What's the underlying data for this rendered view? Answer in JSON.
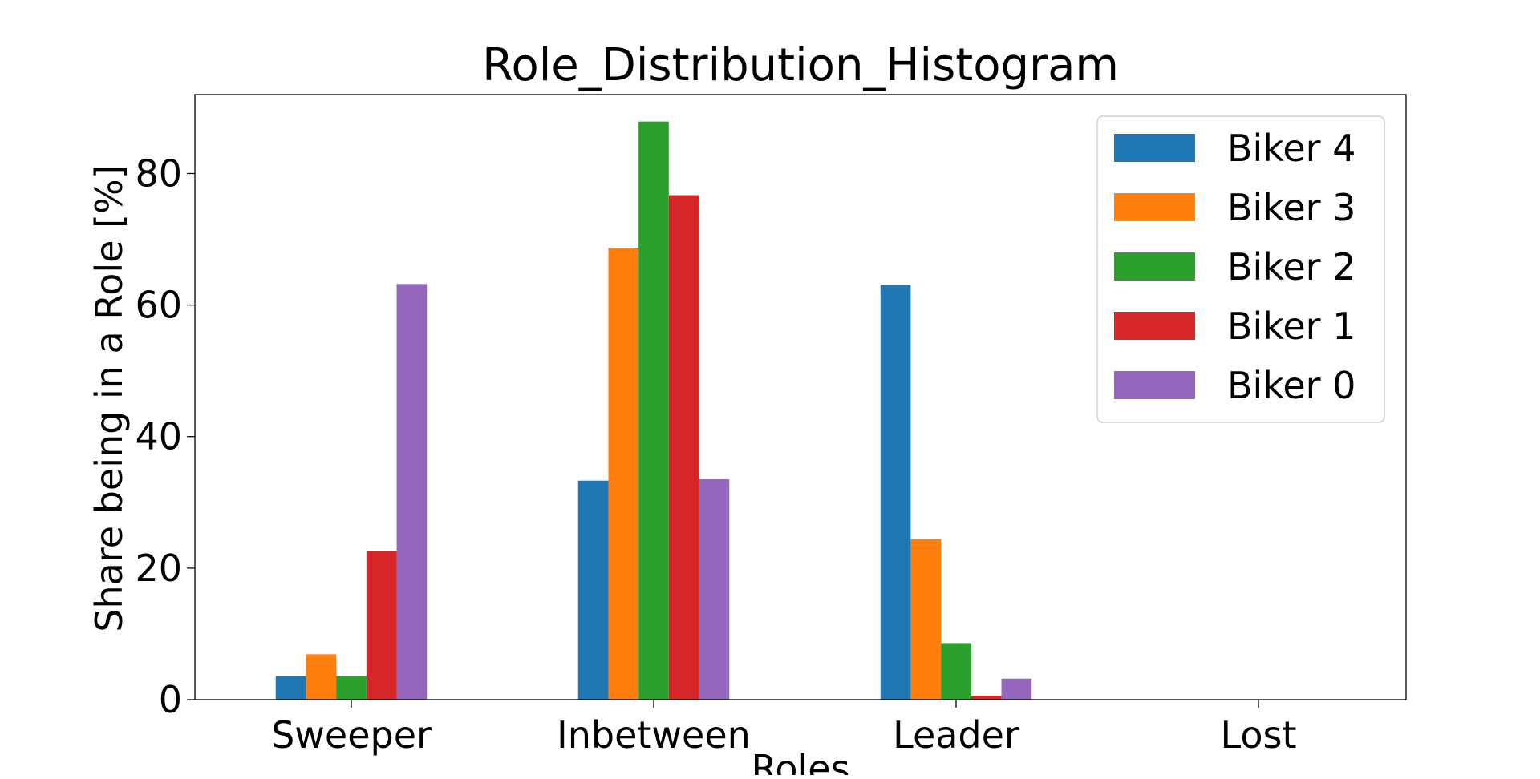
{
  "chart_data": {
    "type": "bar",
    "title": "Role_Distribution_Histogram",
    "xlabel": "Roles",
    "ylabel": "Share being in a Role [%]",
    "categories": [
      "Sweeper",
      "Inbetween",
      "Leader",
      "Lost"
    ],
    "ylim": [
      0,
      92
    ],
    "yticks": [
      0,
      20,
      40,
      60,
      80
    ],
    "grid": false,
    "legend_position": "top-right",
    "series": [
      {
        "name": "Biker 4",
        "color": "#1f77b4",
        "values": [
          3.6,
          33.3,
          63.1,
          0
        ]
      },
      {
        "name": "Biker 3",
        "color": "#ff7f0e",
        "values": [
          6.9,
          68.7,
          24.4,
          0
        ]
      },
      {
        "name": "Biker 2",
        "color": "#2ca02c",
        "values": [
          3.6,
          87.9,
          8.6,
          0
        ]
      },
      {
        "name": "Biker 1",
        "color": "#d62728",
        "values": [
          22.6,
          76.7,
          0.6,
          0
        ]
      },
      {
        "name": "Biker 0",
        "color": "#9467bd",
        "values": [
          63.2,
          33.5,
          3.2,
          0
        ]
      }
    ]
  }
}
